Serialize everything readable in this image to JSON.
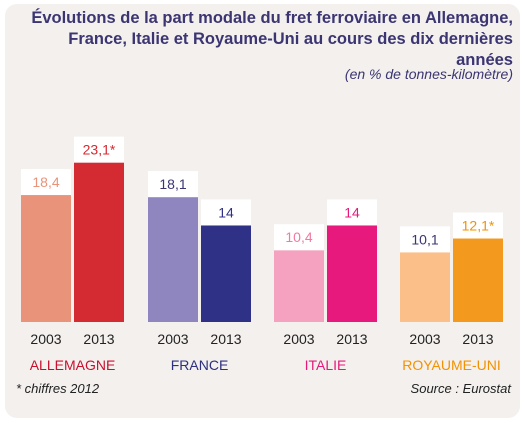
{
  "title_line1": "Évolutions de la part modale du fret ferroviaire en Allemagne,",
  "title_line2": "France, Italie et Royaume-Uni au cours des dix dernières années",
  "subtitle": "(en % de tonnes-kilomètre)",
  "footnote": "* chiffres 2012",
  "source": "Source : Eurostat",
  "chart_data": {
    "type": "bar",
    "title": "Évolutions de la part modale du fret ferroviaire en Allemagne, France, Italie et Royaume-Uni au cours des dix dernières années",
    "subtitle": "(en % de tonnes-kilomètre)",
    "ylabel": "",
    "ylim": [
      0,
      25
    ],
    "grid": false,
    "groups": [
      {
        "name": "ALLEMAGNE",
        "label_color": "#c8102e",
        "bars": [
          {
            "year": "2003",
            "value": 18.4,
            "label": "18,4",
            "color": "#e8937a",
            "label_color": "#e8937a"
          },
          {
            "year": "2013",
            "value": 23.1,
            "label": "23,1*",
            "color": "#d42a32",
            "label_color": "#d42a32"
          }
        ]
      },
      {
        "name": "FRANCE",
        "label_color": "#2e2f7e",
        "bars": [
          {
            "year": "2003",
            "value": 18.1,
            "label": "18,1",
            "color": "#8f86c0",
            "label_color": "#3b3572"
          },
          {
            "year": "2013",
            "value": 14,
            "label": "14",
            "color": "#2e3185",
            "label_color": "#2e3185"
          }
        ]
      },
      {
        "name": "ITALIE",
        "label_color": "#e6197a",
        "bars": [
          {
            "year": "2003",
            "value": 10.4,
            "label": "10,4",
            "color": "#f4a2bf",
            "label_color": "#f07aa2"
          },
          {
            "year": "2013",
            "value": 14,
            "label": "14",
            "color": "#e8197d",
            "label_color": "#e8197d"
          }
        ]
      },
      {
        "name": "ROYAUME-UNI",
        "label_color": "#f39200",
        "bars": [
          {
            "year": "2003",
            "value": 10.1,
            "label": "10,1",
            "color": "#fbc08a",
            "label_color": "#3b3572"
          },
          {
            "year": "2013",
            "value": 12.1,
            "label": "12,1*",
            "color": "#f39a1e",
            "label_color": "#f39200"
          }
        ]
      }
    ]
  }
}
